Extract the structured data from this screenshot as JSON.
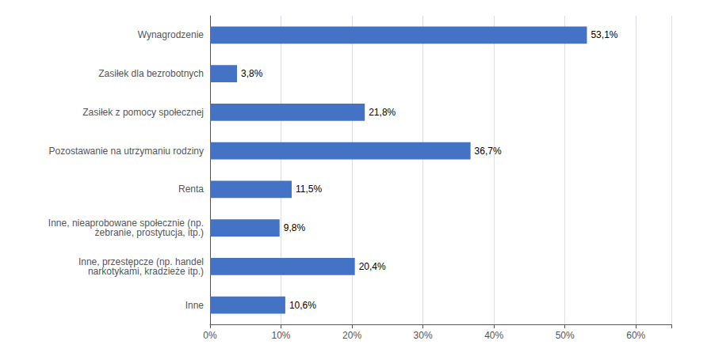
{
  "chart_data": {
    "type": "bar",
    "orientation": "horizontal",
    "categories": [
      "Inne",
      "Inne, przestępcze (np. handel\nnarkotykami, kradzieże itp.)",
      "Inne, nieaprobowane społecznie (np.\nżebranie, prostytucja, itp.)",
      "Renta",
      "Pozostawanie na utrzymaniu rodziny",
      "Zasiłek z pomocy społecznej",
      "Zasiłek dla bezrobotnych",
      "Wynagrodzenie"
    ],
    "values": [
      10.6,
      20.4,
      9.8,
      11.5,
      36.7,
      21.8,
      3.8,
      53.1
    ],
    "value_labels": [
      "10,6%",
      "20,4%",
      "9,8%",
      "11,5%",
      "36,7%",
      "21,8%",
      "3,8%",
      "53,1%"
    ],
    "data_labels": true,
    "color": "#4472C4",
    "xlim": [
      0,
      65
    ],
    "xticks": [
      {
        "value": 0,
        "label": "0%"
      },
      {
        "value": 10,
        "label": "10%"
      },
      {
        "value": 20,
        "label": "20%"
      },
      {
        "value": 30,
        "label": "30%"
      },
      {
        "value": 40,
        "label": "40%"
      },
      {
        "value": 50,
        "label": "50%"
      },
      {
        "value": 60,
        "label": "60%"
      }
    ],
    "grid": true
  }
}
